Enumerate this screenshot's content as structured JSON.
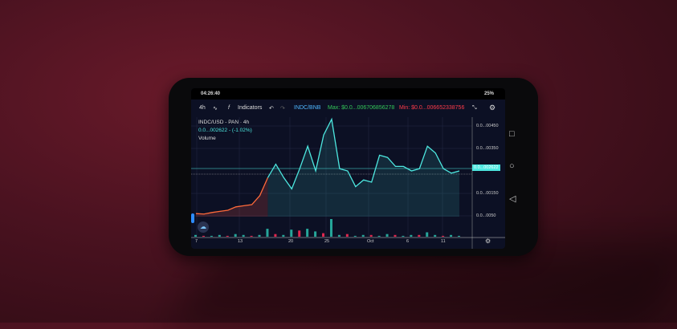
{
  "status": {
    "time": "04:26:40",
    "battery": "25%"
  },
  "toolbar": {
    "interval": "4h",
    "indicators": "Indicators",
    "pair": "INDC/BNB",
    "max": "Max: $0.0...006706856278",
    "min": "Min: $0.0...006652338756"
  },
  "legend": {
    "symbol": "INDC/USD - PAN · 4h",
    "price": "0.0...002622 - (-1.02%)",
    "volume": "Volume"
  },
  "colors": {
    "up": "#26a69a",
    "down": "#e0284f",
    "line_high": "#4de8e0",
    "line_low": "#ff6a3a",
    "max": "#34c759",
    "min": "#ff3b4a",
    "pair": "#4fb6ff"
  },
  "chart_data": {
    "type": "line",
    "price_axis_labels": [
      "0.0...00450",
      "0.0...00350",
      "0.0...00150",
      "0.0...0050"
    ],
    "current_price_label": "0.0...002622",
    "x_tick_labels": [
      "7",
      "13",
      "20",
      "25",
      "Oct",
      "6",
      "11"
    ],
    "price": [
      0.0006,
      0.00058,
      0.00065,
      0.0007,
      0.00075,
      0.0009,
      0.00095,
      0.001,
      0.0014,
      0.0022,
      0.0028,
      0.0022,
      0.0017,
      0.0026,
      0.0036,
      0.0025,
      0.0041,
      0.0048,
      0.0026,
      0.0025,
      0.0018,
      0.0021,
      0.002,
      0.0032,
      0.0031,
      0.0027,
      0.0027,
      0.0025,
      0.0026,
      0.0036,
      0.0033,
      0.0026,
      0.0024,
      0.0025
    ],
    "volume": [
      2,
      1,
      1,
      2,
      1,
      3,
      2,
      1,
      2,
      9,
      3,
      2,
      8,
      7,
      9,
      6,
      4,
      20,
      2,
      3,
      1,
      2,
      2,
      1,
      3,
      2,
      1,
      2,
      2,
      5,
      2,
      1,
      2,
      1
    ]
  },
  "nav": {
    "square": "□",
    "circle": "○",
    "back": "◁"
  }
}
